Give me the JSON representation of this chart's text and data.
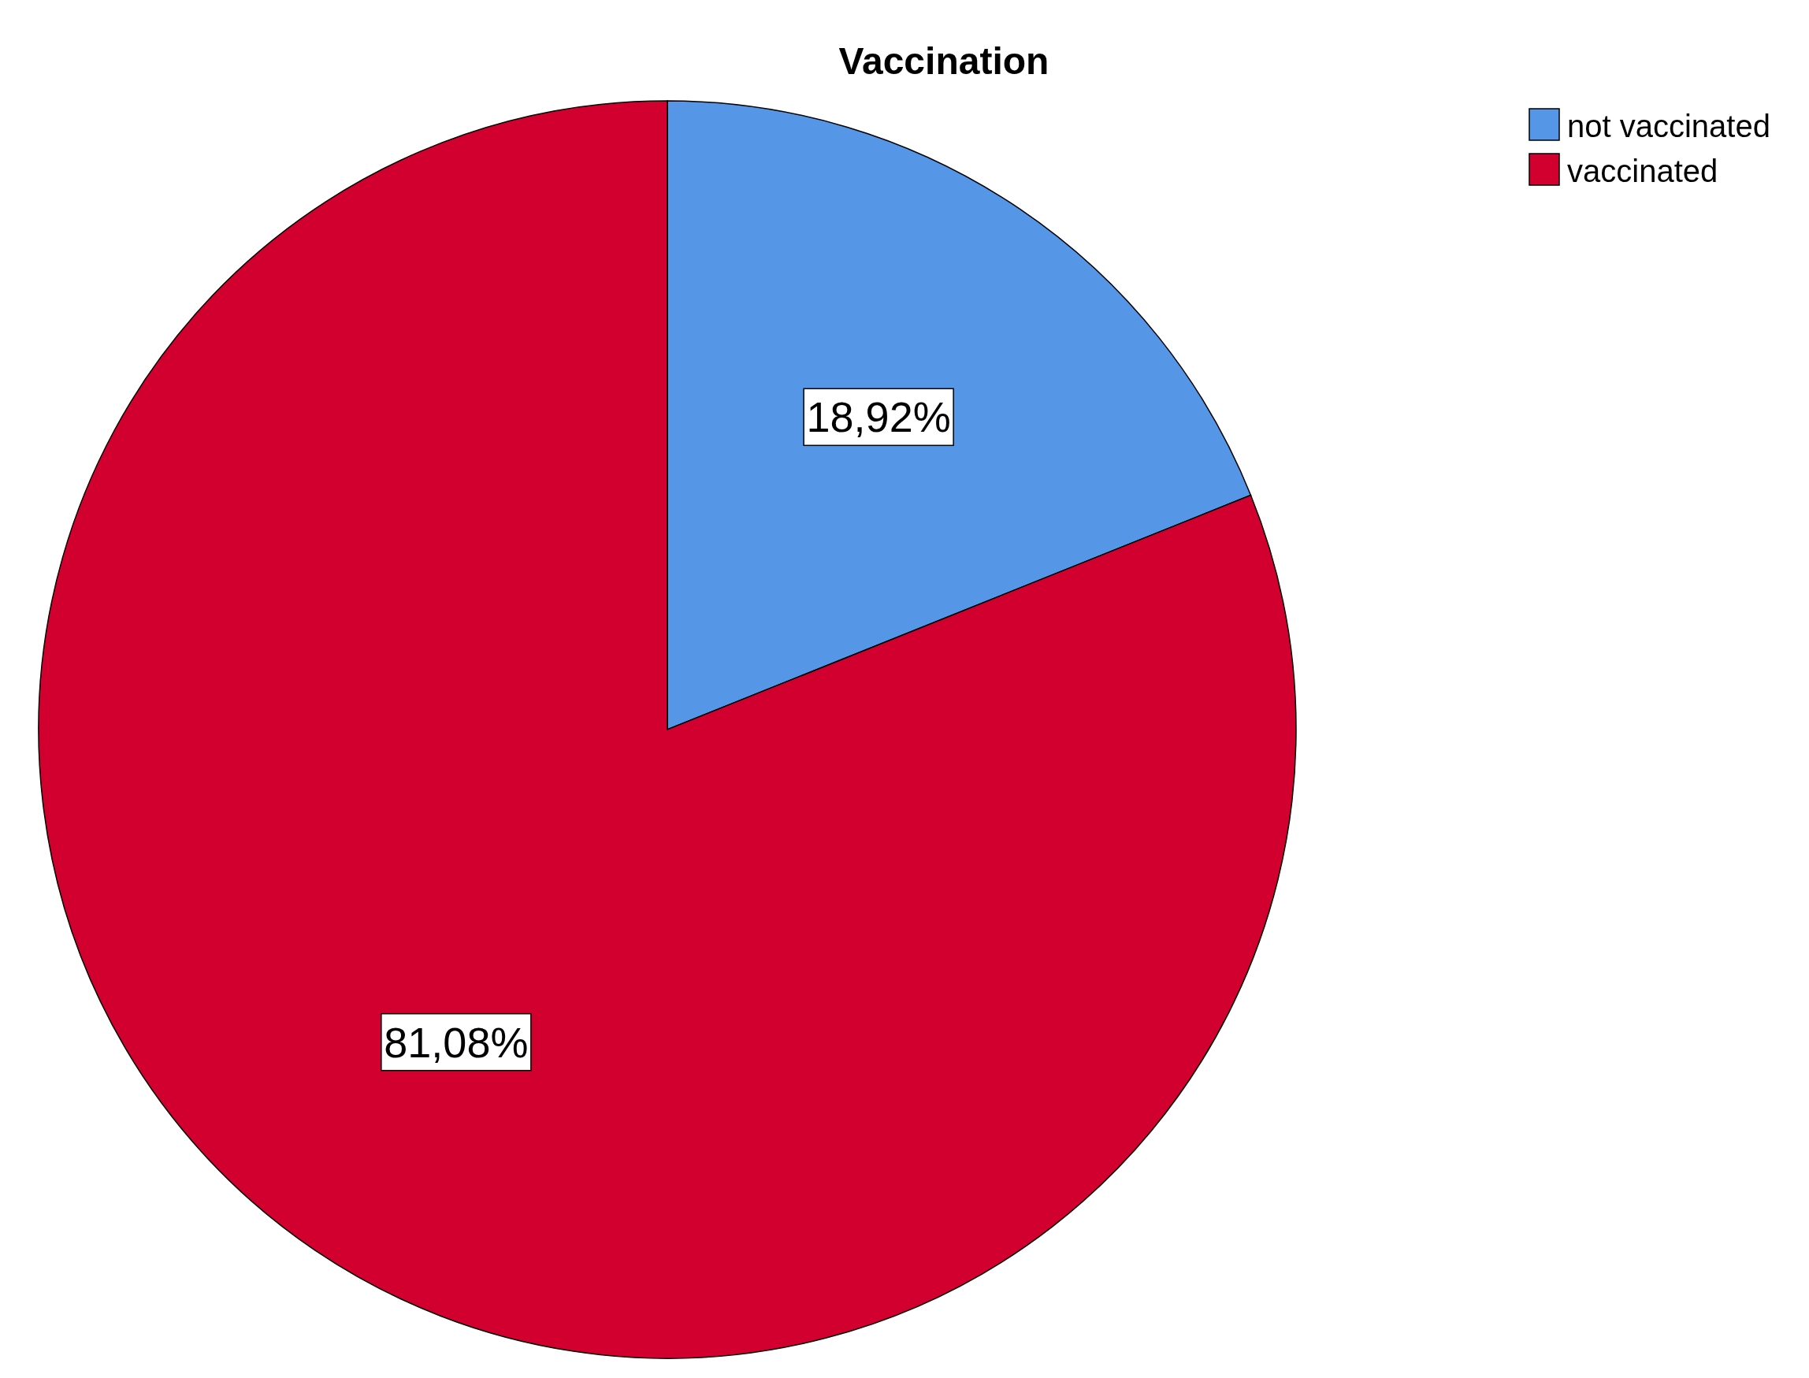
{
  "chart_data": {
    "type": "pie",
    "title": "Vaccination",
    "categories": [
      "not vaccinated",
      "vaccinated"
    ],
    "values": [
      18.92,
      81.08
    ],
    "colors": [
      "#5596e6",
      "#d2002e"
    ],
    "value_labels": [
      "18,92%",
      "81,08%"
    ],
    "legend": "top right"
  }
}
